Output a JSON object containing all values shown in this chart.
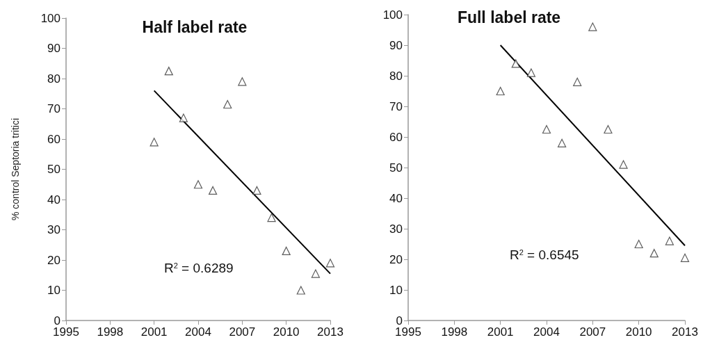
{
  "chart_data": [
    {
      "type": "scatter",
      "title": "Half label rate",
      "ylabel": "% control Septoria tritici",
      "xlim": [
        1995,
        2013
      ],
      "xticks": [
        1995,
        1998,
        2001,
        2004,
        2007,
        2010,
        2013
      ],
      "ylim": [
        0,
        100
      ],
      "yticks": [
        0,
        10,
        20,
        30,
        40,
        50,
        60,
        70,
        80,
        90,
        100
      ],
      "annotations": [
        "R$^{2}$ = 0.6289"
      ],
      "series": [
        {
          "marker": "triangle",
          "color": "#333333",
          "x": [
            2001,
            2002,
            2003,
            2004,
            2005,
            2006,
            2007,
            2008,
            2009,
            2010,
            2011,
            2012,
            2013
          ],
          "values": [
            59,
            82.5,
            67,
            45,
            43,
            71.5,
            79,
            43,
            34,
            23,
            10,
            15.5,
            19
          ]
        },
        {
          "type": "line",
          "color": "#000000",
          "line_style": "solid",
          "x": [
            2001,
            2013
          ],
          "values": [
            76,
            15.5
          ]
        }
      ]
    },
    {
      "type": "scatter",
      "title": "Full label rate",
      "xlim": [
        1995,
        2013
      ],
      "xticks": [
        1995,
        1998,
        2001,
        2004,
        2007,
        2010,
        2013
      ],
      "ylim": [
        0,
        100
      ],
      "yticks": [
        0,
        10,
        20,
        30,
        40,
        50,
        60,
        70,
        80,
        90,
        100
      ],
      "annotations": [
        "R$^{2}$ = 0.6545"
      ],
      "series": [
        {
          "marker": "triangle",
          "color": "#333333",
          "x": [
            2001,
            2002,
            2003,
            2004,
            2005,
            2006,
            2007,
            2008,
            2009,
            2010,
            2011,
            2012,
            2013
          ],
          "values": [
            75,
            84,
            81,
            62.5,
            58,
            78,
            96,
            62.5,
            51,
            25,
            22,
            26,
            20.5
          ]
        },
        {
          "type": "line",
          "color": "#000000",
          "line_style": "solid",
          "x": [
            2001,
            2013
          ],
          "values": [
            90,
            24.5
          ]
        }
      ]
    }
  ]
}
